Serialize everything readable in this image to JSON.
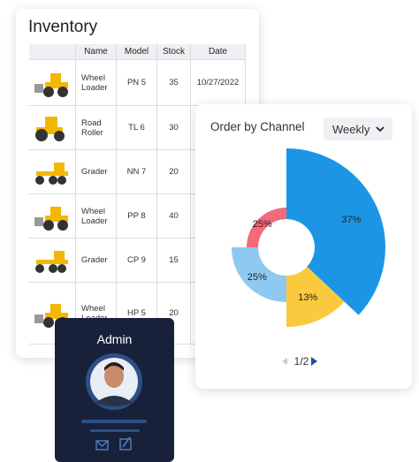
{
  "inventory": {
    "title": "Inventory",
    "headers": [
      "Name",
      "Model",
      "Stock",
      "Date"
    ],
    "rows": [
      [
        "Wheel Loader",
        "PN 5",
        35,
        "10/27/2022"
      ],
      [
        "Road Roller",
        "TL 6",
        30
      ],
      [
        "Grader",
        "NN 7",
        20
      ],
      [
        "Wheel Loader",
        "PP 8",
        40
      ],
      [
        "Grader",
        "CP 9",
        15
      ],
      [
        "Wheel Loader",
        "HP 5",
        20
      ]
    ]
  },
  "chart_data": {
    "type": "pie",
    "title": "Order by Channel",
    "filter": "Weekly",
    "page": "1/2",
    "values": [
      37,
      13,
      25,
      25
    ],
    "value_labels": [
      "37%",
      "13%",
      "25%",
      "25%"
    ],
    "colors": [
      "#1c96e4",
      "#fbc93d",
      "#8ec9f2",
      "#f4697b"
    ]
  },
  "admin": {
    "title": "Admin"
  }
}
